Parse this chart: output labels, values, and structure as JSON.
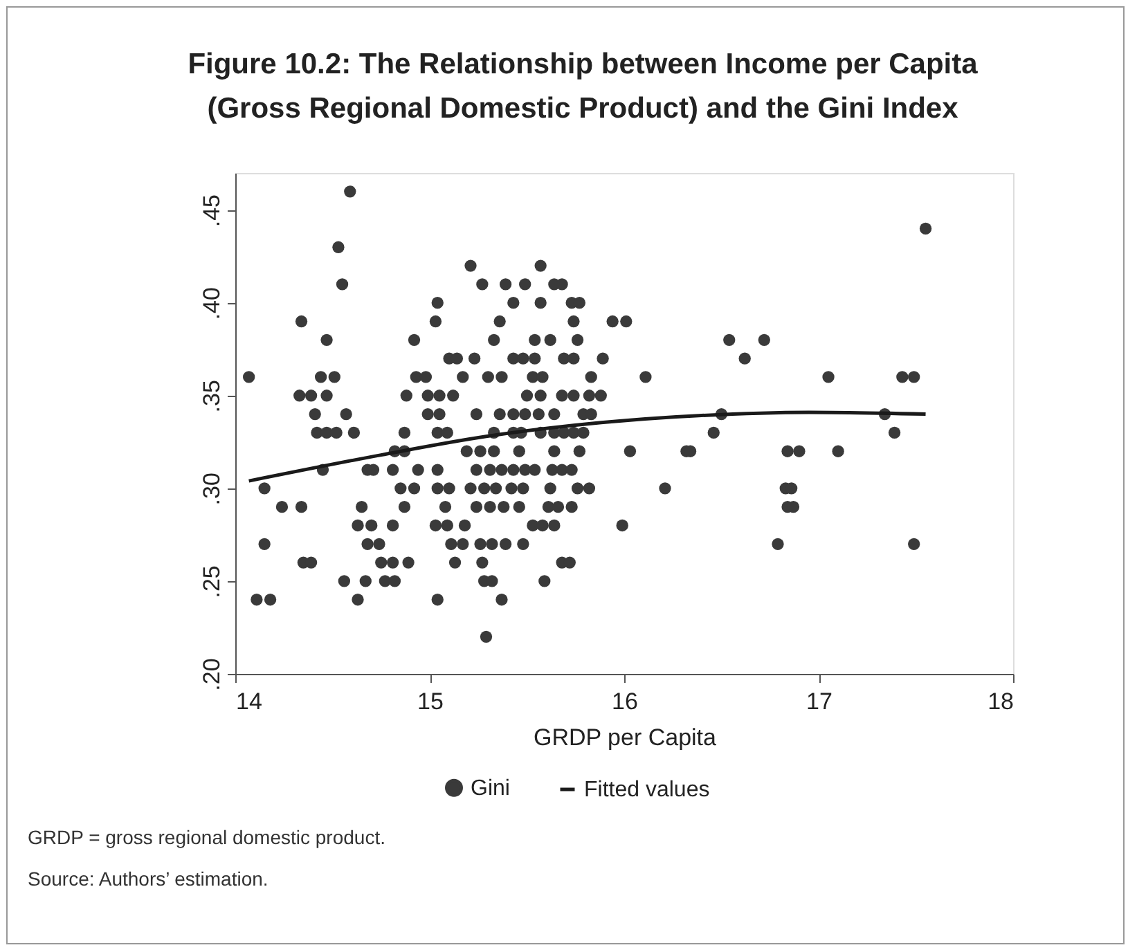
{
  "chart_data": {
    "type": "scatter",
    "title": "Figure 10.2: The Relationship between Income per Capita (Gross Regional Domestic Product) and the Gini Index",
    "xlabel": "GRDP per Capita",
    "xlim": [
      14,
      18
    ],
    "ylim": [
      0.2,
      0.47
    ],
    "xticks": [
      14,
      15,
      16,
      17,
      18
    ],
    "yticks": [
      {
        "value": 0.2,
        "label": ".20"
      },
      {
        "value": 0.25,
        "label": ".25"
      },
      {
        "value": 0.3,
        "label": ".30"
      },
      {
        "value": 0.35,
        "label": ".35"
      },
      {
        "value": 0.4,
        "label": ".40"
      },
      {
        "value": 0.45,
        "label": ".45"
      }
    ],
    "grid": false,
    "legend": "bottom",
    "annotations": [
      "GRDP = gross regional domestic product.",
      "Source: Authors’ estimation."
    ],
    "series": [
      {
        "name": "Gini",
        "marker": "circle",
        "color": "#3a3a3a",
        "x": [
          14.59,
          14.53,
          14.55,
          15.04,
          14.34,
          15.03,
          14.47,
          14.92,
          15.1,
          15.14,
          14.07,
          14.44,
          14.51,
          14.93,
          14.98,
          14.33,
          14.39,
          14.47,
          14.88,
          14.99,
          15.05,
          15.12,
          14.41,
          14.57,
          14.99,
          15.05,
          14.42,
          14.47,
          14.52,
          14.61,
          14.87,
          15.04,
          15.09,
          14.82,
          14.87,
          14.45,
          14.68,
          14.71,
          14.81,
          14.94,
          15.04,
          14.15,
          14.85,
          14.92,
          15.04,
          15.1,
          14.24,
          14.34,
          14.65,
          14.87,
          15.08,
          14.63,
          14.7,
          14.81,
          15.03,
          15.09,
          14.15,
          14.68,
          14.74,
          15.11,
          15.17,
          14.35,
          14.39,
          14.75,
          14.81,
          14.89,
          15.13,
          14.56,
          14.67,
          14.77,
          14.82,
          14.11,
          14.18,
          14.63,
          15.04,
          15.21,
          15.57,
          15.27,
          15.39,
          15.49,
          15.64,
          15.68,
          15.43,
          15.57,
          15.73,
          15.77,
          15.36,
          15.74,
          15.94,
          16.01,
          15.33,
          15.54,
          15.62,
          15.76,
          15.23,
          15.43,
          15.48,
          15.54,
          15.69,
          15.74,
          15.89,
          15.17,
          15.3,
          15.37,
          15.53,
          15.58,
          15.83,
          16.11,
          15.5,
          15.57,
          15.68,
          15.74,
          15.82,
          15.88,
          15.24,
          15.36,
          15.43,
          15.49,
          15.56,
          15.64,
          15.79,
          15.83,
          15.33,
          15.43,
          15.47,
          15.57,
          15.64,
          15.69,
          15.74,
          15.79,
          15.19,
          15.26,
          15.33,
          15.46,
          15.64,
          15.77,
          16.03,
          16.32,
          15.24,
          15.31,
          15.37,
          15.43,
          15.49,
          15.54,
          15.63,
          15.68,
          15.73,
          15.21,
          15.28,
          15.34,
          15.42,
          15.48,
          15.62,
          15.76,
          15.82,
          16.21,
          15.24,
          15.31,
          15.38,
          15.46,
          15.61,
          15.66,
          15.73,
          15.18,
          15.53,
          15.58,
          15.64,
          15.99,
          15.26,
          15.32,
          15.39,
          15.48,
          15.27,
          15.68,
          15.72,
          15.28,
          15.32,
          15.59,
          15.37,
          15.29,
          17.55,
          16.54,
          16.72,
          16.62,
          17.05,
          17.43,
          17.49,
          16.5,
          17.34,
          16.46,
          17.39,
          16.34,
          16.84,
          16.9,
          17.1,
          16.83,
          16.86,
          16.84,
          16.87,
          16.79,
          17.49
        ],
        "values": [
          0.46,
          0.43,
          0.41,
          0.4,
          0.39,
          0.39,
          0.38,
          0.38,
          0.37,
          0.37,
          0.36,
          0.36,
          0.36,
          0.36,
          0.36,
          0.35,
          0.35,
          0.35,
          0.35,
          0.35,
          0.35,
          0.35,
          0.34,
          0.34,
          0.34,
          0.34,
          0.33,
          0.33,
          0.33,
          0.33,
          0.33,
          0.33,
          0.33,
          0.32,
          0.32,
          0.31,
          0.31,
          0.31,
          0.31,
          0.31,
          0.31,
          0.3,
          0.3,
          0.3,
          0.3,
          0.3,
          0.29,
          0.29,
          0.29,
          0.29,
          0.29,
          0.28,
          0.28,
          0.28,
          0.28,
          0.28,
          0.27,
          0.27,
          0.27,
          0.27,
          0.27,
          0.26,
          0.26,
          0.26,
          0.26,
          0.26,
          0.26,
          0.25,
          0.25,
          0.25,
          0.25,
          0.24,
          0.24,
          0.24,
          0.24,
          0.42,
          0.42,
          0.41,
          0.41,
          0.41,
          0.41,
          0.41,
          0.4,
          0.4,
          0.4,
          0.4,
          0.39,
          0.39,
          0.39,
          0.39,
          0.38,
          0.38,
          0.38,
          0.38,
          0.37,
          0.37,
          0.37,
          0.37,
          0.37,
          0.37,
          0.37,
          0.36,
          0.36,
          0.36,
          0.36,
          0.36,
          0.36,
          0.36,
          0.35,
          0.35,
          0.35,
          0.35,
          0.35,
          0.35,
          0.34,
          0.34,
          0.34,
          0.34,
          0.34,
          0.34,
          0.34,
          0.34,
          0.33,
          0.33,
          0.33,
          0.33,
          0.33,
          0.33,
          0.33,
          0.33,
          0.32,
          0.32,
          0.32,
          0.32,
          0.32,
          0.32,
          0.32,
          0.32,
          0.31,
          0.31,
          0.31,
          0.31,
          0.31,
          0.31,
          0.31,
          0.31,
          0.31,
          0.3,
          0.3,
          0.3,
          0.3,
          0.3,
          0.3,
          0.3,
          0.3,
          0.3,
          0.29,
          0.29,
          0.29,
          0.29,
          0.29,
          0.29,
          0.29,
          0.28,
          0.28,
          0.28,
          0.28,
          0.28,
          0.27,
          0.27,
          0.27,
          0.27,
          0.26,
          0.26,
          0.26,
          0.25,
          0.25,
          0.25,
          0.24,
          0.22,
          0.44,
          0.38,
          0.38,
          0.37,
          0.36,
          0.36,
          0.36,
          0.34,
          0.34,
          0.33,
          0.33,
          0.32,
          0.32,
          0.32,
          0.32,
          0.3,
          0.3,
          0.29,
          0.29,
          0.27,
          0.27
        ]
      },
      {
        "name": "Fitted values",
        "type": "line",
        "color": "#1a1a1a",
        "line_style": "solid",
        "x": [
          14.07,
          14.75,
          15.29,
          15.74,
          16.35,
          16.95,
          17.55
        ],
        "values": [
          0.304,
          0.318,
          0.328,
          0.334,
          0.339,
          0.341,
          0.34
        ]
      }
    ]
  }
}
